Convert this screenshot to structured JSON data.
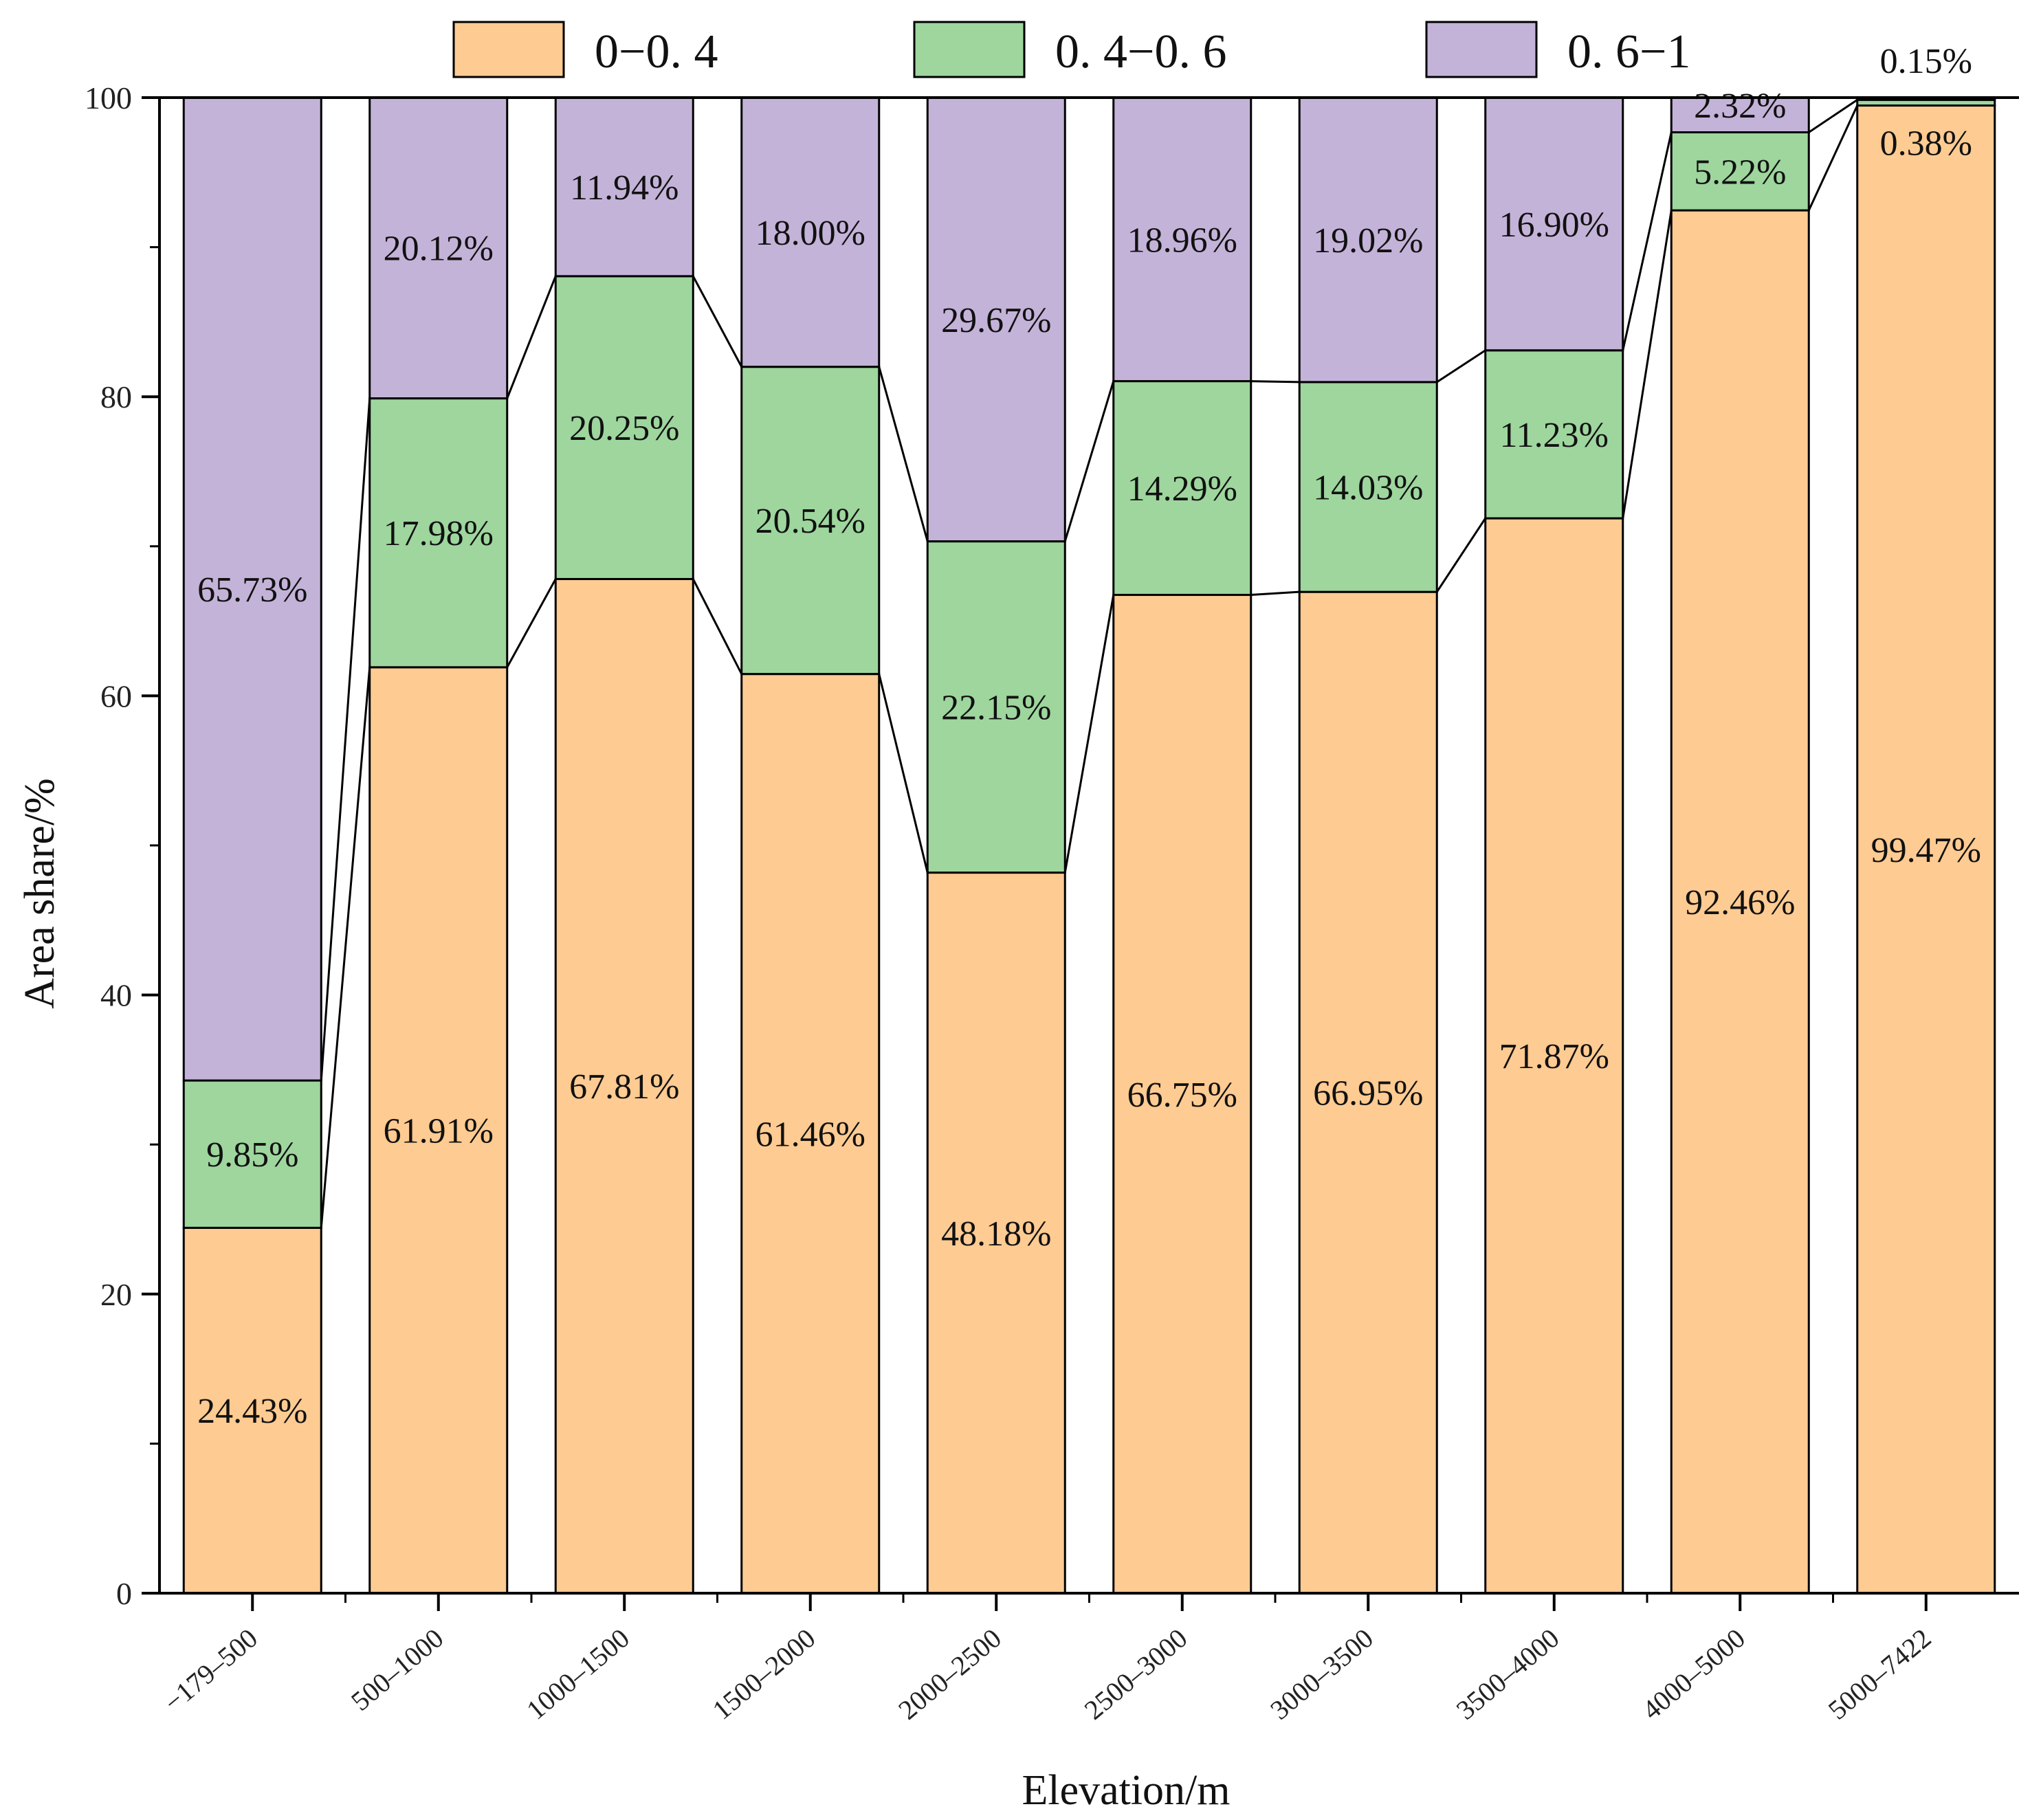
{
  "chart_data": {
    "type": "bar",
    "stacked": true,
    "orientation": "vertical",
    "xlabel": "Elevation/m",
    "ylabel": "Area share/%",
    "ylim": [
      0,
      100
    ],
    "yticks": [
      "0",
      "20",
      "40",
      "60",
      "80",
      "100"
    ],
    "grid": false,
    "legend_position": "top",
    "categories": [
      "−179–500",
      "500–1000",
      "1000–1500",
      "1500–2000",
      "2000–2500",
      "2500–3000",
      "3000–3500",
      "3500–4000",
      "4000–5000",
      "5000–7422"
    ],
    "series": [
      {
        "name": "0−0. 4",
        "color": "#FECB92",
        "values": [
          24.43,
          61.91,
          67.81,
          61.46,
          48.18,
          66.75,
          66.95,
          71.87,
          92.46,
          99.47
        ],
        "labels": [
          "24.43%",
          "61.91%",
          "67.81%",
          "61.46%",
          "48.18%",
          "66.75%",
          "66.95%",
          "71.87%",
          "92.46%",
          "99.47%"
        ]
      },
      {
        "name": "0. 4−0. 6",
        "color": "#9ED69E",
        "values": [
          9.85,
          17.98,
          20.25,
          20.54,
          22.15,
          14.29,
          14.03,
          11.23,
          5.22,
          0.38
        ],
        "labels": [
          "9.85%",
          "17.98%",
          "20.25%",
          "20.54%",
          "22.15%",
          "14.29%",
          "14.03%",
          "11.23%",
          "5.22%",
          "0.38%"
        ]
      },
      {
        "name": "0. 6−1",
        "color": "#C4B3D8",
        "values": [
          65.73,
          20.12,
          11.94,
          18.0,
          29.67,
          18.96,
          19.02,
          16.9,
          2.32,
          0.15
        ],
        "labels": [
          "65.73%",
          "20.12%",
          "11.94%",
          "18.00%",
          "29.67%",
          "18.96%",
          "19.02%",
          "16.90%",
          "2.32%",
          "0.15%"
        ]
      }
    ]
  }
}
